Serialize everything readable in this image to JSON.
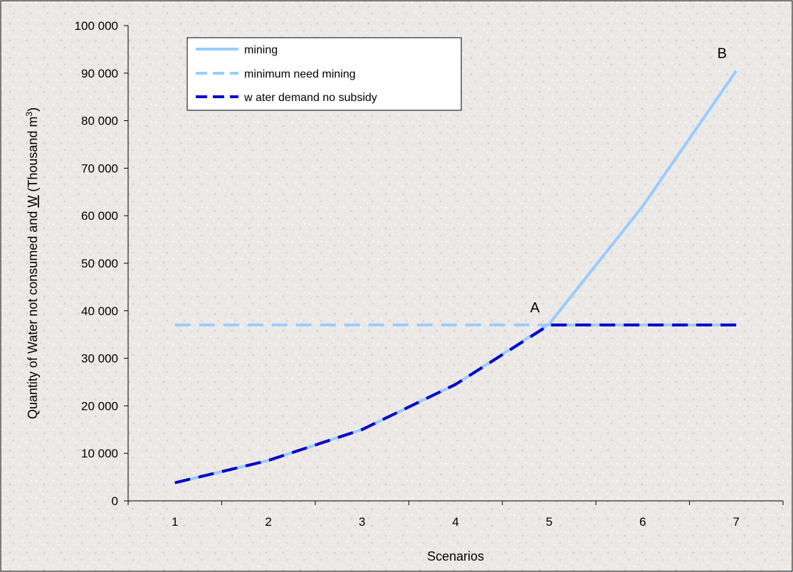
{
  "chart_data": {
    "type": "line",
    "categories": [
      "1",
      "2",
      "3",
      "4",
      "5",
      "6",
      "7"
    ],
    "xlabel": "Scenarios",
    "ylabel_parts": {
      "main": "Quantity of Water not consumed and ",
      "w": "W",
      "unit_open": " (Thousand m",
      "sup": "3",
      "unit_close": ")"
    },
    "ylim": [
      0,
      100000
    ],
    "yticks": [
      {
        "value": 0,
        "label": "0"
      },
      {
        "value": 10000,
        "label": "10 000"
      },
      {
        "value": 20000,
        "label": "20 000"
      },
      {
        "value": 30000,
        "label": "30 000"
      },
      {
        "value": 40000,
        "label": "40 000"
      },
      {
        "value": 50000,
        "label": "50 000"
      },
      {
        "value": 60000,
        "label": "60 000"
      },
      {
        "value": 70000,
        "label": "70 000"
      },
      {
        "value": 80000,
        "label": "80 000"
      },
      {
        "value": 90000,
        "label": "90 000"
      },
      {
        "value": 100000,
        "label": "100 000"
      }
    ],
    "series": [
      {
        "name": "mining",
        "values": [
          3800,
          8500,
          15000,
          24500,
          37200,
          62000,
          90500
        ],
        "color": "#99ccff",
        "dash": "solid"
      },
      {
        "name": "minimum need mining",
        "values": [
          37000,
          37000,
          37000,
          37000,
          37000,
          37000,
          37000
        ],
        "color": "#99ccff",
        "dash": "dashed"
      },
      {
        "name": "w ater demand no subsidy",
        "values": [
          3800,
          8500,
          15000,
          24500,
          37000,
          37000,
          37000
        ],
        "color": "#0000cc",
        "dash": "dashed"
      }
    ],
    "annotations": [
      {
        "text": "A",
        "x": "5",
        "y": 37000
      },
      {
        "text": "B",
        "x": "7",
        "y": 90500
      }
    ],
    "legend_position": "top-left",
    "grid": false,
    "background": "#ece9e6"
  }
}
